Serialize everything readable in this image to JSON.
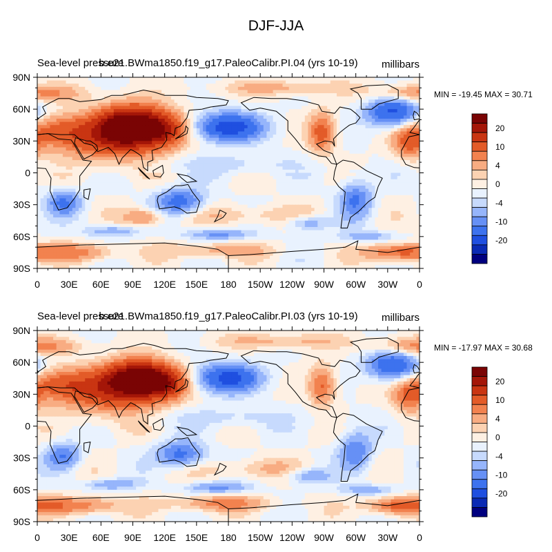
{
  "figure": {
    "title": "DJF-JJA"
  },
  "chart_data": [
    {
      "type": "heatmap",
      "title_left": "Sea-level pressure",
      "title_center": "b.e21.BWma1850.f19_g17.PaleoCalibr.PI.04 (yrs 10-19)",
      "units": "millibars",
      "stats": "MIN = -19.45 MAX =  30.71",
      "x_ticks": [
        "0",
        "30E",
        "60E",
        "90E",
        "120E",
        "150E",
        "180",
        "150W",
        "120W",
        "90W",
        "60W",
        "30W",
        "0"
      ],
      "y_ticks": [
        "90N",
        "60N",
        "30N",
        "0",
        "30S",
        "60S",
        "90S"
      ],
      "xlim": [
        0,
        360
      ],
      "ylim": [
        -90,
        90
      ],
      "colorbar_labels": [
        "20",
        "10",
        "4",
        "0",
        "-4",
        "-10",
        "-20"
      ],
      "min": -19.45,
      "max": 30.71,
      "features": [
        {
          "lon": 90,
          "lat": 45,
          "value": 30,
          "rlon": 32,
          "rlat": 18
        },
        {
          "lon": 70,
          "lat": 32,
          "value": 14,
          "rlon": 48,
          "rlat": 20
        },
        {
          "lon": 120,
          "lat": 40,
          "value": 12,
          "rlon": 20,
          "rlat": 14
        },
        {
          "lon": 20,
          "lat": 40,
          "value": 10,
          "rlon": 30,
          "rlat": 14
        },
        {
          "lon": 180,
          "lat": 43,
          "value": -19,
          "rlon": 30,
          "rlat": 13
        },
        {
          "lon": 335,
          "lat": 57,
          "value": -16,
          "rlon": 24,
          "rlat": 13
        },
        {
          "lon": 268,
          "lat": 38,
          "value": 12,
          "rlon": 12,
          "rlat": 18
        },
        {
          "lon": 350,
          "lat": 28,
          "value": 10,
          "rlon": 15,
          "rlat": 14
        },
        {
          "lon": 135,
          "lat": -27,
          "value": -12,
          "rlon": 22,
          "rlat": 12
        },
        {
          "lon": 25,
          "lat": -28,
          "value": -10,
          "rlon": 16,
          "rlat": 12
        },
        {
          "lon": 300,
          "lat": -25,
          "value": -10,
          "rlon": 15,
          "rlat": 18
        },
        {
          "lon": 100,
          "lat": -42,
          "value": 8,
          "rlon": 18,
          "rlat": 8
        },
        {
          "lon": 200,
          "lat": -40,
          "value": 4,
          "rlon": 60,
          "rlat": 9
        },
        {
          "lon": 255,
          "lat": -47,
          "value": -7,
          "rlon": 20,
          "rlat": 7
        },
        {
          "lon": 0,
          "lat": 75,
          "value": 8,
          "rlon": 40,
          "rlat": 8
        },
        {
          "lon": 230,
          "lat": 80,
          "value": 5,
          "rlon": 60,
          "rlat": 7
        },
        {
          "lon": 340,
          "lat": -75,
          "value": 12,
          "rlon": 30,
          "rlat": 8
        },
        {
          "lon": 40,
          "lat": -75,
          "value": 8,
          "rlon": 35,
          "rlat": 8
        },
        {
          "lon": 170,
          "lat": -73,
          "value": 6,
          "rlon": 50,
          "rlat": 7
        },
        {
          "lon": 70,
          "lat": -55,
          "value": -7,
          "rlon": 25,
          "rlat": 5
        },
        {
          "lon": 170,
          "lat": -58,
          "value": -8,
          "rlon": 30,
          "rlat": 5
        },
        {
          "lon": 310,
          "lat": -60,
          "value": -6,
          "rlon": 25,
          "rlat": 5
        },
        {
          "lon": 180,
          "lat": 8,
          "value": -3,
          "rlon": 70,
          "rlat": 10
        },
        {
          "lon": 90,
          "lat": 0,
          "value": 1,
          "rlon": 25,
          "rlat": 6
        }
      ]
    },
    {
      "type": "heatmap",
      "title_left": "Sea-level pressure",
      "title_center": "b.e21.BWma1850.f19_g17.PaleoCalibr.PI.03 (yrs 10-19)",
      "units": "millibars",
      "stats": "MIN = -17.97 MAX =  30.68",
      "x_ticks": [
        "0",
        "30E",
        "60E",
        "90E",
        "120E",
        "150E",
        "180",
        "150W",
        "120W",
        "90W",
        "60W",
        "30W",
        "0"
      ],
      "y_ticks": [
        "90N",
        "60N",
        "30N",
        "0",
        "30S",
        "60S",
        "90S"
      ],
      "xlim": [
        0,
        360
      ],
      "ylim": [
        -90,
        90
      ],
      "colorbar_labels": [
        "20",
        "10",
        "4",
        "0",
        "-4",
        "-10",
        "-20"
      ],
      "min": -17.97,
      "max": 30.68,
      "features": [
        {
          "lon": 95,
          "lat": 45,
          "value": 30,
          "rlon": 30,
          "rlat": 16
        },
        {
          "lon": 70,
          "lat": 32,
          "value": 14,
          "rlon": 48,
          "rlat": 20
        },
        {
          "lon": 120,
          "lat": 40,
          "value": 12,
          "rlon": 20,
          "rlat": 14
        },
        {
          "lon": 20,
          "lat": 40,
          "value": 10,
          "rlon": 30,
          "rlat": 14
        },
        {
          "lon": 180,
          "lat": 45,
          "value": -17,
          "rlon": 30,
          "rlat": 13
        },
        {
          "lon": 335,
          "lat": 57,
          "value": -15,
          "rlon": 24,
          "rlat": 13
        },
        {
          "lon": 268,
          "lat": 38,
          "value": 11,
          "rlon": 12,
          "rlat": 18
        },
        {
          "lon": 350,
          "lat": 28,
          "value": 10,
          "rlon": 15,
          "rlat": 14
        },
        {
          "lon": 135,
          "lat": -27,
          "value": -12,
          "rlon": 22,
          "rlat": 12
        },
        {
          "lon": 25,
          "lat": -28,
          "value": -10,
          "rlon": 16,
          "rlat": 12
        },
        {
          "lon": 300,
          "lat": -25,
          "value": -10,
          "rlon": 15,
          "rlat": 18
        },
        {
          "lon": 200,
          "lat": -40,
          "value": 4,
          "rlon": 60,
          "rlat": 9
        },
        {
          "lon": 255,
          "lat": -47,
          "value": -7,
          "rlon": 20,
          "rlat": 7
        },
        {
          "lon": 0,
          "lat": 75,
          "value": 8,
          "rlon": 40,
          "rlat": 8
        },
        {
          "lon": 230,
          "lat": 80,
          "value": 5,
          "rlon": 60,
          "rlat": 7
        },
        {
          "lon": 340,
          "lat": -75,
          "value": 12,
          "rlon": 30,
          "rlat": 8
        },
        {
          "lon": 40,
          "lat": -75,
          "value": 10,
          "rlon": 35,
          "rlat": 8
        },
        {
          "lon": 170,
          "lat": -73,
          "value": 8,
          "rlon": 50,
          "rlat": 7
        },
        {
          "lon": 70,
          "lat": -55,
          "value": -7,
          "rlon": 25,
          "rlat": 5
        },
        {
          "lon": 170,
          "lat": -58,
          "value": -8,
          "rlon": 30,
          "rlat": 5
        },
        {
          "lon": 310,
          "lat": -60,
          "value": -6,
          "rlon": 25,
          "rlat": 5
        },
        {
          "lon": 180,
          "lat": 8,
          "value": -3,
          "rlon": 70,
          "rlat": 10
        },
        {
          "lon": 90,
          "lat": 0,
          "value": 1,
          "rlon": 25,
          "rlat": 6
        }
      ]
    }
  ],
  "colors": {
    "levels": [
      "#00007f",
      "#0a2ab4",
      "#1f4fe0",
      "#3d72ee",
      "#6690f5",
      "#96b5fb",
      "#c7dafd",
      "#e9f2fe",
      "#fef0e3",
      "#fcd2b2",
      "#f8ac82",
      "#f2824f",
      "#e35b28",
      "#c93512",
      "#a41608",
      "#7a0404"
    ]
  }
}
